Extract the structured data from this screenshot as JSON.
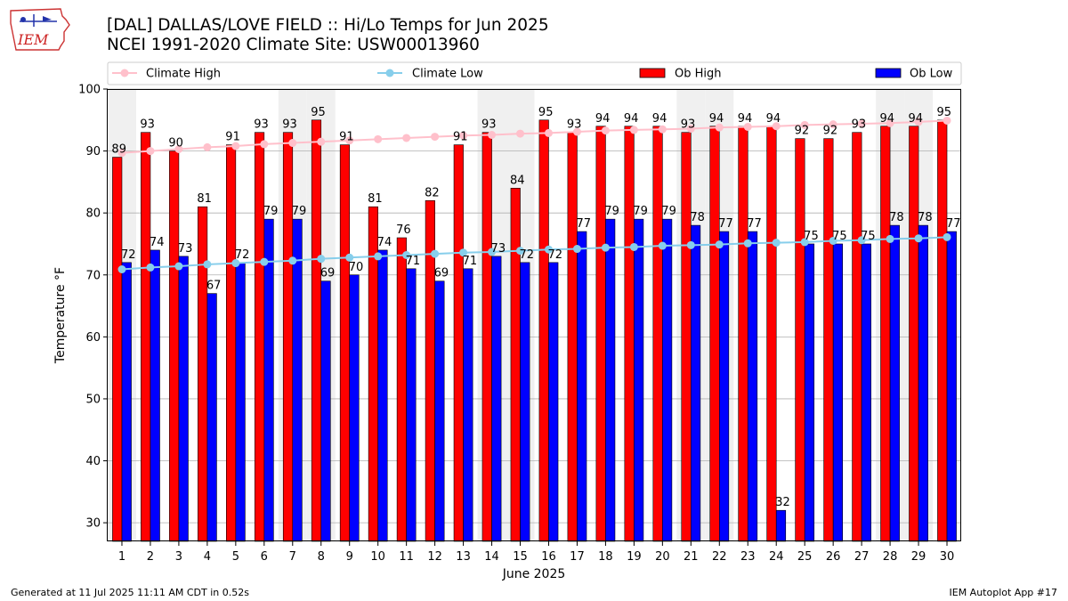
{
  "header": {
    "title_line1": "[DAL] DALLAS/LOVE FIELD :: Hi/Lo Temps for Jun 2025",
    "title_line2": "NCEI 1991-2020 Climate Site: USW00013960",
    "logo_text": "IEM"
  },
  "footer": {
    "generated": "Generated at 11 Jul 2025 11:11 AM CDT in 0.52s",
    "app": "IEM Autoplot App #17"
  },
  "colors": {
    "ob_high": "#ff0000",
    "ob_low": "#0000ff",
    "climate_high": "#ffc0cb",
    "climate_low": "#87ceeb",
    "weekend_shade": "#f0f0f0",
    "grid": "#b0b0b0"
  },
  "chart_data": {
    "type": "bar",
    "title": "[DAL] DALLAS/LOVE FIELD :: Hi/Lo Temps for Jun 2025",
    "xlabel": "June 2025",
    "ylabel": "Temperature °F",
    "ylim": [
      27,
      100
    ],
    "yticks": [
      30,
      40,
      50,
      60,
      70,
      80,
      90,
      100
    ],
    "grid": "horizontal",
    "legend": "top",
    "categories": [
      1,
      2,
      3,
      4,
      5,
      6,
      7,
      8,
      9,
      10,
      11,
      12,
      13,
      14,
      15,
      16,
      17,
      18,
      19,
      20,
      21,
      22,
      23,
      24,
      25,
      26,
      27,
      28,
      29,
      30
    ],
    "shaded_days": [
      1,
      7,
      8,
      14,
      15,
      21,
      22,
      28,
      29
    ],
    "series": [
      {
        "name": "Ob High",
        "kind": "bar",
        "values": [
          89,
          93,
          90,
          81,
          91,
          93,
          93,
          95,
          91,
          81,
          76,
          82,
          91,
          93,
          84,
          95,
          93,
          94,
          94,
          94,
          93,
          94,
          94,
          94,
          92,
          92,
          93,
          94,
          94,
          95
        ]
      },
      {
        "name": "Ob Low",
        "kind": "bar",
        "values": [
          72,
          74,
          73,
          67,
          72,
          79,
          79,
          69,
          70,
          74,
          71,
          69,
          71,
          73,
          72,
          72,
          77,
          79,
          79,
          79,
          78,
          77,
          77,
          32,
          75,
          75,
          75,
          78,
          78,
          77
        ]
      },
      {
        "name": "Climate High",
        "kind": "line",
        "values": [
          89.7,
          90.0,
          90.3,
          90.6,
          90.8,
          91.1,
          91.3,
          91.5,
          91.7,
          91.9,
          92.1,
          92.3,
          92.5,
          92.6,
          92.8,
          92.9,
          93.1,
          93.3,
          93.4,
          93.5,
          93.6,
          93.8,
          93.9,
          94.0,
          94.2,
          94.3,
          94.4,
          94.5,
          94.7,
          94.9
        ]
      },
      {
        "name": "Climate Low",
        "kind": "line",
        "values": [
          70.9,
          71.2,
          71.4,
          71.7,
          71.9,
          72.1,
          72.3,
          72.6,
          72.8,
          73.0,
          73.2,
          73.4,
          73.6,
          73.7,
          73.9,
          74.1,
          74.2,
          74.4,
          74.5,
          74.7,
          74.8,
          74.9,
          75.1,
          75.2,
          75.3,
          75.5,
          75.6,
          75.8,
          75.9,
          76.1
        ]
      }
    ]
  }
}
